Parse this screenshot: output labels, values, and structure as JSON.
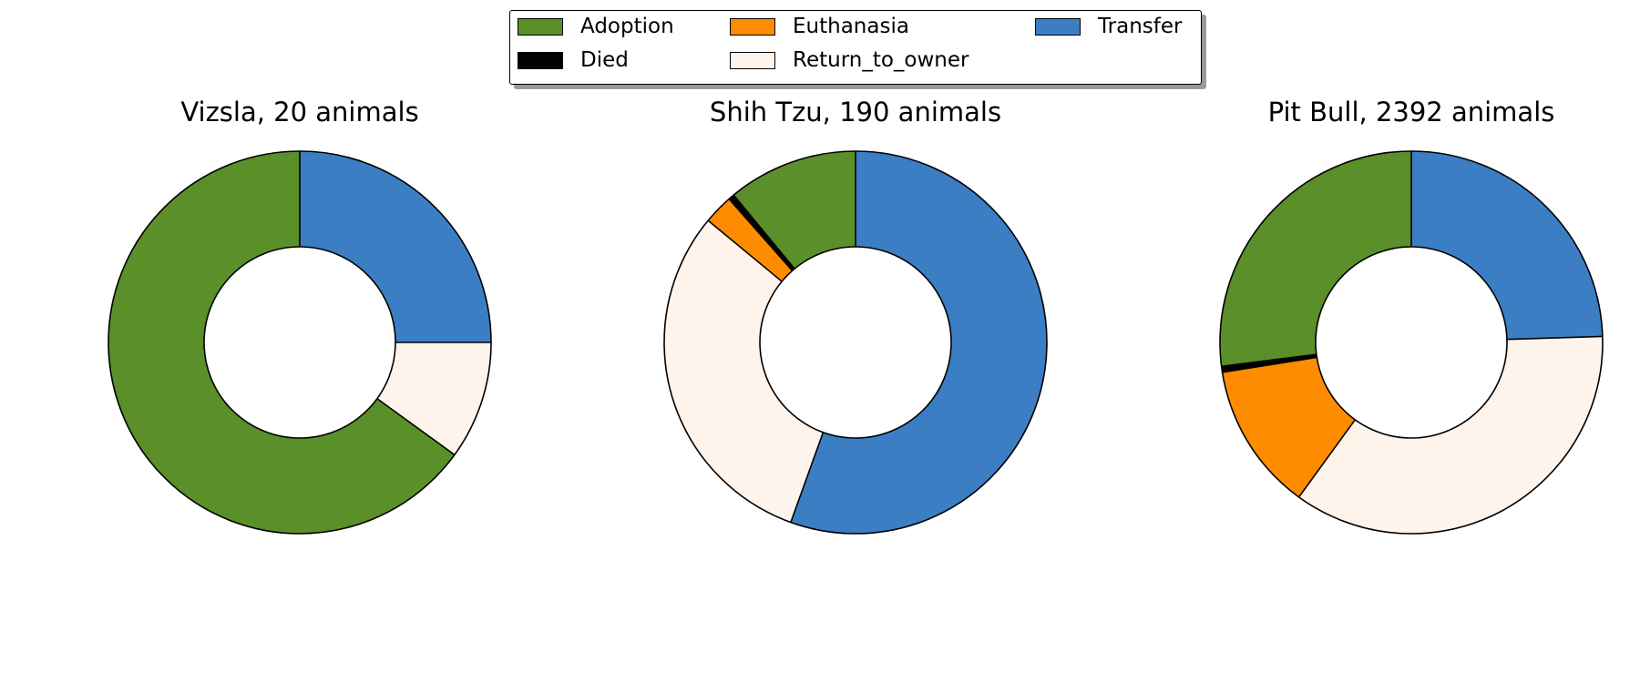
{
  "legend": {
    "placement": "top-center",
    "items": [
      {
        "label": "Adoption",
        "color": "#5b8f29"
      },
      {
        "label": "Died",
        "color": "#000000"
      },
      {
        "label": "Euthanasia",
        "color": "#ff8c00"
      },
      {
        "label": "Return_to_owner",
        "color": "#fff4ec"
      },
      {
        "label": "Transfer",
        "color": "#3c7ec4"
      }
    ]
  },
  "chart_data": [
    {
      "type": "pie",
      "style": "donut",
      "title": "Vizsla, 20 animals",
      "categories": [
        "Transfer",
        "Return_to_owner",
        "Adoption"
      ],
      "values": [
        0.25,
        0.1,
        0.65
      ],
      "colors": [
        "#3c7ec4",
        "#fff4ec",
        "#5b8f29"
      ]
    },
    {
      "type": "pie",
      "style": "donut",
      "title": "Shih Tzu, 190 animals",
      "categories": [
        "Transfer",
        "Return_to_owner",
        "Euthanasia",
        "Died",
        "Adoption"
      ],
      "values": [
        0.555,
        0.305,
        0.025,
        0.005,
        0.11
      ],
      "colors": [
        "#3c7ec4",
        "#fff4ec",
        "#ff8c00",
        "#000000",
        "#5b8f29"
      ]
    },
    {
      "type": "pie",
      "style": "donut",
      "title": "Pit Bull, 2392 animals",
      "categories": [
        "Transfer",
        "Return_to_owner",
        "Euthanasia",
        "Died",
        "Adoption"
      ],
      "values": [
        0.245,
        0.355,
        0.125,
        0.005,
        0.27
      ],
      "colors": [
        "#3c7ec4",
        "#fff4ec",
        "#ff8c00",
        "#000000",
        "#5b8f29"
      ]
    }
  ]
}
